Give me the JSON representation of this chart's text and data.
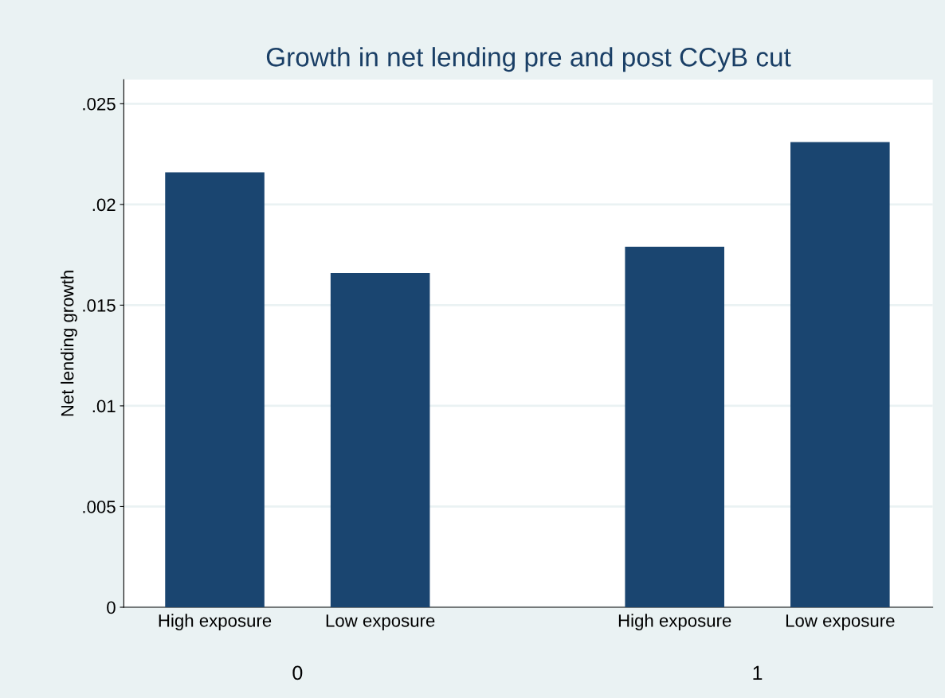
{
  "chart_data": {
    "type": "bar",
    "title": "Growth in net lending pre and post CCyB cut",
    "ylabel": "Net lending growth",
    "categories": [
      "High exposure",
      "Low exposure",
      "High exposure",
      "Low exposure"
    ],
    "values": [
      0.0216,
      0.0166,
      0.0179,
      0.0231
    ],
    "color": "#1a4570",
    "annotations": [
      "0",
      "1"
    ],
    "ylim": [
      0,
      0.0262
    ],
    "yticks": [
      {
        "value": 0,
        "label": "0"
      },
      {
        "value": 0.005,
        "label": ".005"
      },
      {
        "value": 0.01,
        "label": ".01"
      },
      {
        "value": 0.015,
        "label": ".015"
      },
      {
        "value": 0.02,
        "label": ".02"
      },
      {
        "value": 0.025,
        "label": ".025"
      }
    ],
    "grid": "y",
    "legend": false
  }
}
